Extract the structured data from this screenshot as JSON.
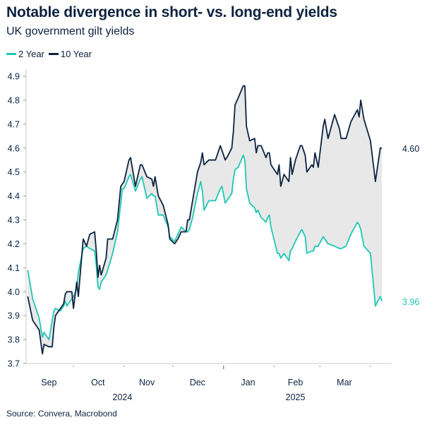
{
  "header": {
    "title": "Notable divergence in short- vs. long-end yields",
    "subtitle": "UK government gilt yields"
  },
  "source": "Source: Convera, Macrobond",
  "colors": {
    "two_year": "#1ec8b4",
    "ten_year": "#0b2340",
    "fill": "#e8e8e8",
    "axis": "#cccccc"
  },
  "chart_data": {
    "type": "line",
    "title": "Notable divergence in short- vs. long-end yields",
    "subtitle": "UK government gilt yields",
    "xlabel": "",
    "ylabel": "",
    "ylim": [
      3.7,
      4.9
    ],
    "xlim": [
      "2024-09-02",
      "2025-04-14"
    ],
    "yticks": [
      "3.7",
      "3.8",
      "3.9",
      "4.0",
      "4.1",
      "4.2",
      "4.3",
      "4.4",
      "4.5",
      "4.6",
      "4.7",
      "4.8",
      "4.9"
    ],
    "month_labels": [
      {
        "label": "Sep",
        "date": "2024-09-16"
      },
      {
        "label": "Oct",
        "date": "2024-10-16"
      },
      {
        "label": "Nov",
        "date": "2024-11-15"
      },
      {
        "label": "Dec",
        "date": "2024-12-16"
      },
      {
        "label": "Jan",
        "date": "2025-01-16"
      },
      {
        "label": "Feb",
        "date": "2025-02-14"
      },
      {
        "label": "Mar",
        "date": "2025-03-16"
      }
    ],
    "year_labels": [
      {
        "label": "2024",
        "date": "2024-10-31"
      },
      {
        "label": "2025",
        "date": "2025-02-14"
      }
    ],
    "month_ticks": [
      "2024-10-01",
      "2024-11-01",
      "2024-12-01",
      "2025-01-01",
      "2025-02-01",
      "2025-03-01",
      "2025-04-01"
    ],
    "major_tick": "2025-01-01",
    "grid": false,
    "legend": "top-left",
    "fill_between": true,
    "end_labels": [
      {
        "series": "10 Year",
        "text": "4.60"
      },
      {
        "series": "2 Year",
        "text": "3.96"
      }
    ],
    "dates": [
      "2024-09-03",
      "2024-09-06",
      "2024-09-10",
      "2024-09-12",
      "2024-09-13",
      "2024-09-16",
      "2024-09-18",
      "2024-09-19",
      "2024-09-20",
      "2024-09-23",
      "2024-09-25",
      "2024-09-26",
      "2024-09-27",
      "2024-09-30",
      "2024-10-01",
      "2024-10-03",
      "2024-10-04",
      "2024-10-07",
      "2024-10-09",
      "2024-10-11",
      "2024-10-14",
      "2024-10-15",
      "2024-10-16",
      "2024-10-17",
      "2024-10-18",
      "2024-10-21",
      "2024-10-22",
      "2024-10-25",
      "2024-10-28",
      "2024-10-30",
      "2024-10-31",
      "2024-11-01",
      "2024-11-04",
      "2024-11-05",
      "2024-11-08",
      "2024-11-11",
      "2024-11-12",
      "2024-11-15",
      "2024-11-18",
      "2024-11-19",
      "2024-11-20",
      "2024-11-22",
      "2024-11-25",
      "2024-11-28",
      "2024-11-29",
      "2024-12-02",
      "2024-12-04",
      "2024-12-06",
      "2024-12-09",
      "2024-12-10",
      "2024-12-11",
      "2024-12-13",
      "2024-12-16",
      "2024-12-18",
      "2024-12-19",
      "2024-12-20",
      "2024-12-23",
      "2024-12-27",
      "2024-12-30",
      "2024-12-31",
      "2025-01-02",
      "2025-01-03",
      "2025-01-06",
      "2025-01-07",
      "2025-01-08",
      "2025-01-10",
      "2025-01-13",
      "2025-01-14",
      "2025-01-15",
      "2025-01-17",
      "2025-01-20",
      "2025-01-21",
      "2025-01-22",
      "2025-01-24",
      "2025-01-27",
      "2025-01-28",
      "2025-01-29",
      "2025-01-30",
      "2025-02-03",
      "2025-02-04",
      "2025-02-05",
      "2025-02-07",
      "2025-02-10",
      "2025-02-11",
      "2025-02-12",
      "2025-02-14",
      "2025-02-17",
      "2025-02-18",
      "2025-02-20",
      "2025-02-21",
      "2025-02-24",
      "2025-02-25",
      "2025-02-26",
      "2025-02-28",
      "2025-03-03",
      "2025-03-04",
      "2025-03-06",
      "2025-03-10",
      "2025-03-13",
      "2025-03-14",
      "2025-03-17",
      "2025-03-20",
      "2025-03-24",
      "2025-03-25",
      "2025-03-26",
      "2025-03-28",
      "2025-04-01",
      "2025-04-04",
      "2025-04-07",
      "2025-04-08"
    ],
    "series": [
      {
        "name": "2 Year",
        "values": [
          4.09,
          3.97,
          3.89,
          3.81,
          3.83,
          3.8,
          3.88,
          3.92,
          3.93,
          3.92,
          3.94,
          3.96,
          3.94,
          3.97,
          3.98,
          4.01,
          4.08,
          4.18,
          4.19,
          4.18,
          4.17,
          4.11,
          4.02,
          4.01,
          4.04,
          4.07,
          4.09,
          4.16,
          4.25,
          4.37,
          4.43,
          4.43,
          4.48,
          4.49,
          4.42,
          4.47,
          4.48,
          4.39,
          4.41,
          4.4,
          4.4,
          4.32,
          4.32,
          4.27,
          4.23,
          4.21,
          4.24,
          4.27,
          4.25,
          4.25,
          4.26,
          4.31,
          4.41,
          4.46,
          4.42,
          4.34,
          4.38,
          4.38,
          4.43,
          4.44,
          4.37,
          4.38,
          4.41,
          4.47,
          4.51,
          4.52,
          4.57,
          4.55,
          4.43,
          4.37,
          4.35,
          4.33,
          4.34,
          4.31,
          4.29,
          4.31,
          4.32,
          4.27,
          4.16,
          4.16,
          4.14,
          4.16,
          4.13,
          4.17,
          4.18,
          4.21,
          4.25,
          4.26,
          4.23,
          4.16,
          4.17,
          4.17,
          4.19,
          4.19,
          4.23,
          4.22,
          4.2,
          4.19,
          4.18,
          4.18,
          4.19,
          4.24,
          4.29,
          4.28,
          4.26,
          4.19,
          4.16,
          3.94,
          3.98,
          3.96
        ]
      },
      {
        "name": "10 Year",
        "values": [
          3.98,
          3.88,
          3.84,
          3.74,
          3.78,
          3.77,
          3.77,
          3.85,
          3.9,
          3.93,
          3.95,
          3.99,
          4.0,
          4.0,
          3.93,
          4.04,
          3.98,
          4.22,
          4.19,
          4.24,
          4.25,
          4.17,
          4.06,
          4.11,
          4.07,
          4.14,
          4.22,
          4.22,
          4.3,
          4.44,
          4.45,
          4.46,
          4.55,
          4.56,
          4.44,
          4.53,
          4.53,
          4.48,
          4.47,
          4.44,
          4.48,
          4.4,
          4.36,
          4.28,
          4.22,
          4.2,
          4.22,
          4.25,
          4.25,
          4.3,
          4.3,
          4.38,
          4.5,
          4.54,
          4.58,
          4.53,
          4.55,
          4.55,
          4.61,
          4.59,
          4.55,
          4.56,
          4.6,
          4.67,
          4.78,
          4.81,
          4.86,
          4.86,
          4.69,
          4.63,
          4.64,
          4.58,
          4.61,
          4.61,
          4.56,
          4.58,
          4.58,
          4.53,
          4.49,
          4.53,
          4.44,
          4.49,
          4.46,
          4.56,
          4.49,
          4.55,
          4.61,
          4.61,
          4.57,
          4.5,
          4.53,
          4.52,
          4.58,
          4.52,
          4.69,
          4.72,
          4.64,
          4.74,
          4.68,
          4.64,
          4.64,
          4.71,
          4.76,
          4.73,
          4.8,
          4.72,
          4.63,
          4.46,
          4.6,
          4.6
        ]
      }
    ]
  },
  "legend": {
    "items": [
      {
        "label": "2 Year"
      },
      {
        "label": "10 Year"
      }
    ]
  }
}
